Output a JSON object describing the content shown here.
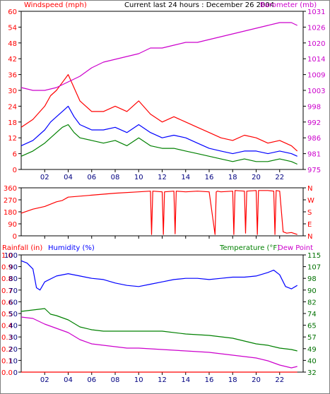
{
  "header": {
    "title": "Current last 24 hours : December 26 2004",
    "windspeed_label": "Windspeed (mph)",
    "barometer_label": "Barometer (mb)"
  },
  "colors": {
    "frame": "#000000",
    "red": "#ff0000",
    "blue": "#0000ff",
    "green": "#008000",
    "magenta": "#cc00cc",
    "navy": "#000080",
    "darkgreen": "#007000",
    "grid": "#d0d0d0"
  },
  "chart_data": [
    {
      "type": "line",
      "name": "wind-barometer",
      "title": "Current last 24 hours : December 26 2004",
      "x_ticks": [
        "02",
        "04",
        "06",
        "08",
        "10",
        "12",
        "14",
        "16",
        "18",
        "20",
        "22"
      ],
      "x_tick_hours": [
        2,
        4,
        6,
        8,
        10,
        12,
        14,
        16,
        18,
        20,
        22
      ],
      "xlim": [
        0,
        24
      ],
      "ylabel_left": "Windspeed (mph)",
      "ylabel_right": "Barometer (mb)",
      "ylim_left": [
        0,
        60
      ],
      "yticks_left": [
        "0",
        "6",
        "12",
        "18",
        "24",
        "30",
        "36",
        "42",
        "48",
        "54",
        "60"
      ],
      "ylim_right": [
        975,
        1031
      ],
      "yticks_right": [
        "975",
        "981",
        "986",
        "992",
        "998",
        "1003",
        "1009",
        "1014",
        "1020",
        "1026",
        "1031"
      ],
      "series": [
        {
          "key": "gust",
          "color": "#ff0000",
          "axis": "left",
          "x": [
            0,
            1,
            2,
            2.5,
            3,
            3.5,
            4,
            4.5,
            5,
            6,
            7,
            8,
            9,
            10,
            11,
            12,
            13,
            14,
            15,
            16,
            17,
            18,
            19,
            20,
            21,
            22,
            23,
            23.5
          ],
          "y": [
            16,
            19,
            24,
            28,
            30,
            33,
            36,
            31,
            26,
            22,
            22,
            24,
            22,
            26,
            21,
            18,
            20,
            18,
            16,
            14,
            12,
            11,
            13,
            12,
            10,
            11,
            9,
            7
          ]
        },
        {
          "key": "avg",
          "color": "#0000ff",
          "axis": "left",
          "x": [
            0,
            1,
            2,
            2.5,
            3,
            3.5,
            4,
            4.5,
            5,
            6,
            7,
            8,
            9,
            10,
            11,
            12,
            13,
            14,
            15,
            16,
            17,
            18,
            19,
            20,
            21,
            22,
            23,
            23.5
          ],
          "y": [
            9,
            11,
            15,
            18,
            20,
            22,
            24,
            20,
            17,
            15,
            15,
            16,
            14,
            17,
            14,
            12,
            13,
            12,
            10,
            8,
            7,
            6,
            7,
            7,
            6,
            7,
            6,
            5
          ]
        },
        {
          "key": "min",
          "color": "#008000",
          "axis": "left",
          "x": [
            0,
            1,
            2,
            2.5,
            3,
            3.5,
            4,
            4.5,
            5,
            6,
            7,
            8,
            9,
            10,
            11,
            12,
            13,
            14,
            15,
            16,
            17,
            18,
            19,
            20,
            21,
            22,
            23,
            23.5
          ],
          "y": [
            5,
            7,
            10,
            12,
            14,
            16,
            17,
            14,
            12,
            11,
            10,
            11,
            9,
            12,
            9,
            8,
            8,
            7,
            6,
            5,
            4,
            3,
            4,
            3,
            3,
            4,
            3,
            2
          ]
        },
        {
          "key": "barometer",
          "color": "#cc00cc",
          "axis": "right",
          "x": [
            0,
            1,
            2,
            3,
            4,
            5,
            6,
            7,
            8,
            9,
            10,
            11,
            12,
            13,
            14,
            15,
            16,
            17,
            18,
            19,
            20,
            21,
            22,
            23,
            23.5
          ],
          "y": [
            1004,
            1003,
            1003,
            1004,
            1006,
            1008,
            1011,
            1013,
            1014,
            1015,
            1016,
            1018,
            1018,
            1019,
            1020,
            1020,
            1021,
            1022,
            1023,
            1024,
            1025,
            1026,
            1027,
            1027,
            1026
          ]
        }
      ]
    },
    {
      "type": "line",
      "name": "wind-direction",
      "x_ticks": [
        "02",
        "04",
        "06",
        "08",
        "10",
        "12",
        "14",
        "16",
        "18",
        "20",
        "22"
      ],
      "xlim": [
        0,
        24
      ],
      "ylim": [
        0,
        360
      ],
      "yticks_left": [
        "0",
        "90",
        "180",
        "270",
        "360"
      ],
      "yticks_right": [
        "N",
        "E",
        "S",
        "W",
        "N"
      ],
      "series": [
        {
          "key": "direction",
          "color": "#ff0000",
          "x": [
            0,
            1,
            2,
            3,
            3.5,
            4,
            6,
            8,
            10,
            11,
            11.1,
            11.2,
            12,
            12.1,
            12.2,
            13,
            13.1,
            13.2,
            14,
            15,
            16,
            16.5,
            16.6,
            16.7,
            17,
            18,
            18.1,
            18.2,
            19,
            19.1,
            19.2,
            20,
            20.1,
            20.2,
            21,
            21.5,
            21.6,
            21.7,
            22,
            22.3,
            22.6,
            23,
            23.5
          ],
          "y": [
            170,
            200,
            220,
            255,
            265,
            290,
            305,
            320,
            330,
            335,
            10,
            335,
            330,
            10,
            330,
            335,
            15,
            335,
            330,
            335,
            330,
            10,
            330,
            335,
            330,
            335,
            10,
            340,
            335,
            20,
            335,
            340,
            10,
            340,
            340,
            335,
            10,
            340,
            335,
            30,
            20,
            25,
            10
          ]
        }
      ]
    },
    {
      "type": "line",
      "name": "temperature-humidity",
      "x_ticks": [
        "02",
        "04",
        "06",
        "08",
        "10",
        "12",
        "14",
        "16",
        "18",
        "20",
        "22"
      ],
      "xlim": [
        0,
        24
      ],
      "label_rainfall": "Rainfall (in)",
      "label_humidity": "Humidity (%)",
      "label_temperature": "Temperature (°F)",
      "label_dewpoint": "Dew Point",
      "ylim_rain": [
        0,
        1
      ],
      "yticks_rain": [
        "0.0",
        "0.1",
        "0.2",
        "0.3",
        "0.4",
        "0.5",
        "0.6",
        "0.7",
        "0.8",
        "0.9",
        "1.0"
      ],
      "yticks_humidity": [
        "0",
        "10",
        "20",
        "30",
        "40",
        "50",
        "60",
        "70",
        "80",
        "90",
        "100"
      ],
      "ylim_temp": [
        32,
        115
      ],
      "yticks_temp": [
        "32",
        "40",
        "49",
        "57",
        "65",
        "74",
        "82",
        "90",
        "98",
        "107",
        "115"
      ],
      "series": [
        {
          "key": "humidity",
          "color": "#0000ff",
          "axis": "humidity",
          "x": [
            0,
            0.5,
            1,
            1.3,
            1.6,
            2,
            3,
            4,
            5,
            6,
            7,
            8,
            9,
            10,
            11,
            12,
            13,
            14,
            15,
            16,
            17,
            18,
            19,
            20,
            21,
            21.5,
            22,
            22.5,
            23,
            23.5
          ],
          "y": [
            95,
            93,
            88,
            72,
            70,
            77,
            82,
            84,
            82,
            80,
            79,
            76,
            74,
            73,
            75,
            77,
            79,
            80,
            80,
            79,
            80,
            81,
            81,
            82,
            85,
            87,
            83,
            73,
            71,
            74
          ]
        },
        {
          "key": "temperature",
          "color": "#008000",
          "axis": "temp",
          "x": [
            0,
            1,
            2,
            2.5,
            3,
            4,
            5,
            6,
            7,
            8,
            10,
            12,
            14,
            16,
            18,
            19,
            20,
            21,
            22,
            23,
            23.5
          ],
          "y": [
            75,
            76,
            77,
            73,
            72,
            69,
            64,
            62,
            61,
            61,
            61,
            61,
            59,
            58,
            56,
            54,
            52,
            51,
            49,
            48,
            47
          ]
        },
        {
          "key": "dewpoint",
          "color": "#cc00cc",
          "axis": "temp",
          "x": [
            0,
            1,
            1.5,
            2,
            3,
            4,
            5,
            6,
            7,
            8,
            9,
            10,
            12,
            14,
            16,
            18,
            20,
            21,
            22,
            22.5,
            23,
            23.5
          ],
          "y": [
            71,
            70,
            68,
            66,
            63,
            60,
            55,
            52,
            51,
            50,
            49,
            49,
            48,
            47,
            46,
            44,
            42,
            40,
            37,
            36,
            35,
            36
          ]
        },
        {
          "key": "rainfall",
          "color": "#ff0000",
          "axis": "rain",
          "x": [
            0,
            23.5
          ],
          "y": [
            0,
            0
          ]
        }
      ]
    }
  ]
}
